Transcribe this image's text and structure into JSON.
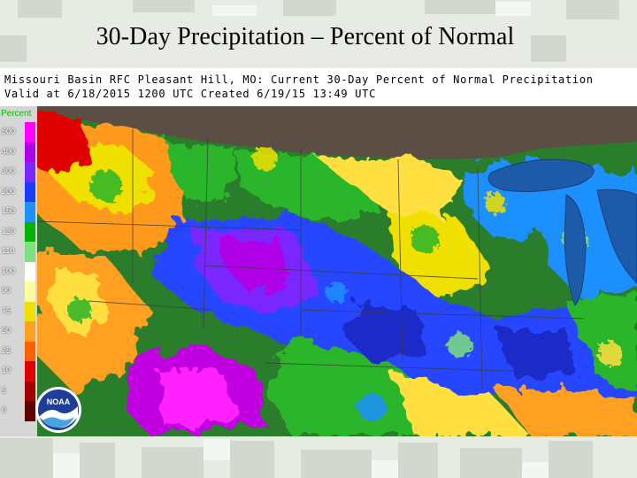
{
  "slide": {
    "title": "30-Day Precipitation – Percent of Normal"
  },
  "map": {
    "header_line1": "Missouri Basin RFC Pleasant Hill, MO: Current 30-Day Percent of Normal Precipitation",
    "header_line2": "Valid at 6/18/2015 1200 UTC   Created 6/19/15 13:49 UTC",
    "legend": {
      "title": "Percent",
      "entries": [
        {
          "label": "600",
          "color": "#ff00ff"
        },
        {
          "label": "400",
          "color": "#b000e8"
        },
        {
          "label": "300",
          "color": "#7a28ff"
        },
        {
          "label": "200",
          "color": "#1a3cff"
        },
        {
          "label": "150",
          "color": "#1e90ff"
        },
        {
          "label": "130",
          "color": "#00b400"
        },
        {
          "label": "110",
          "color": "#7ee07e"
        },
        {
          "label": "100",
          "color": "#ffffff"
        },
        {
          "label": "90",
          "color": "#ffffa0"
        },
        {
          "label": "75",
          "color": "#f0e000"
        },
        {
          "label": "50",
          "color": "#ffa020"
        },
        {
          "label": "25",
          "color": "#ff6000"
        },
        {
          "label": "10",
          "color": "#e00000"
        },
        {
          "label": "5",
          "color": "#a00000"
        },
        {
          "label": "0",
          "color": "#600000"
        }
      ]
    },
    "logo_text": "NOAA"
  }
}
